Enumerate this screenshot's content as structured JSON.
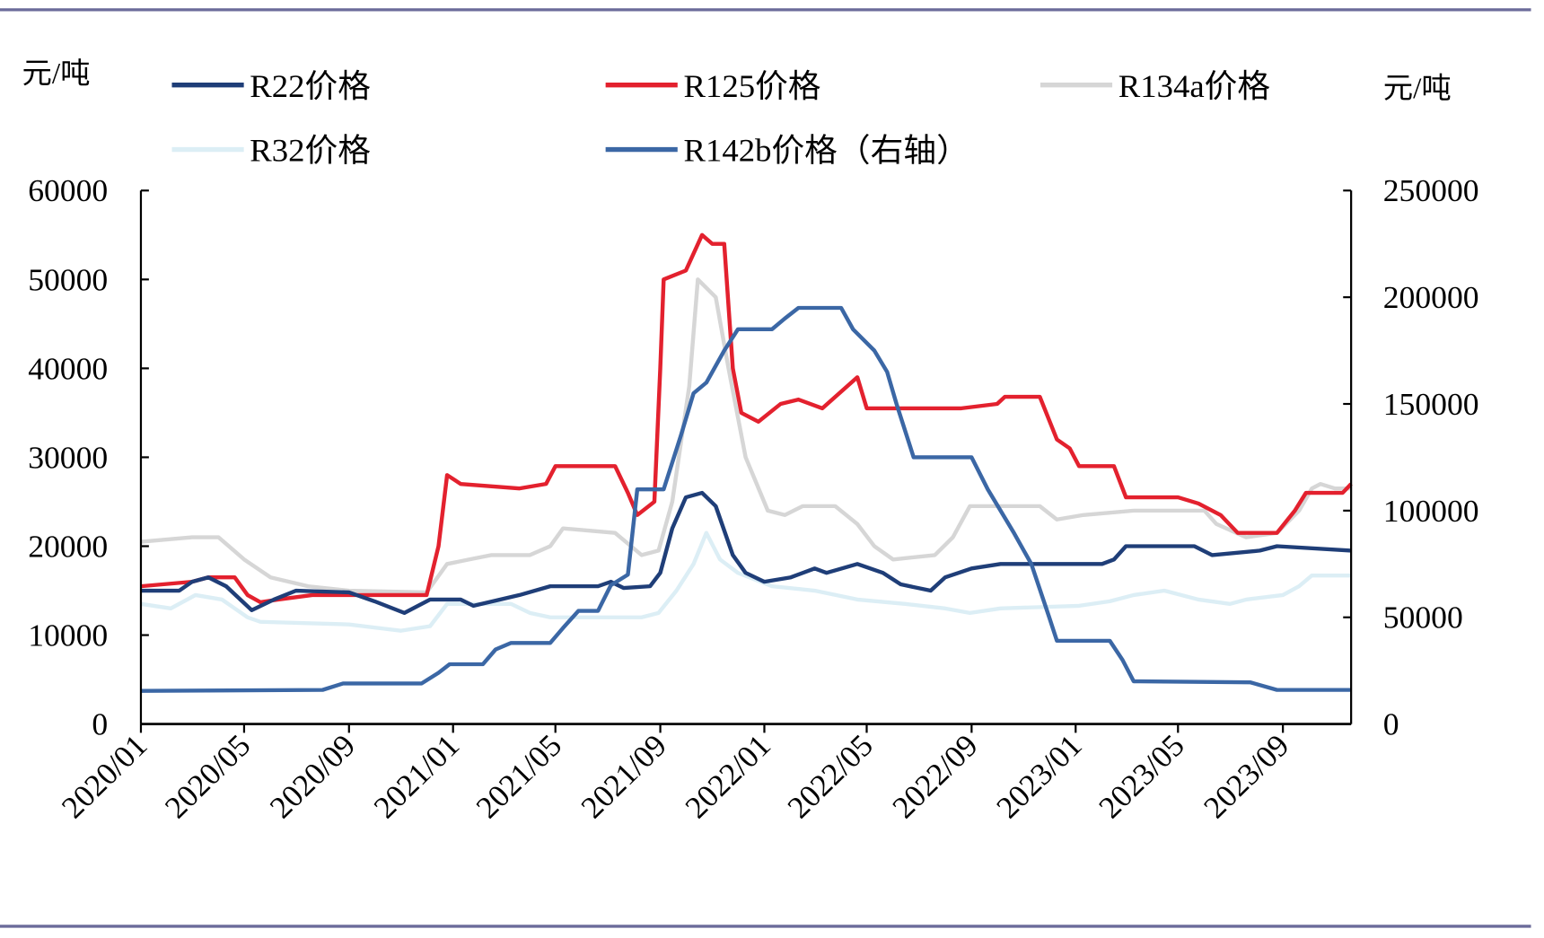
{
  "chart_data": {
    "type": "line",
    "left_unit": "元/吨",
    "right_unit": "元/吨",
    "y_left": {
      "range": [
        0,
        60000
      ],
      "ticks": [
        "0",
        "10000",
        "20000",
        "30000",
        "40000",
        "50000",
        "60000"
      ]
    },
    "y_right": {
      "range": [
        0,
        250000
      ],
      "ticks": [
        "0",
        "50000",
        "100000",
        "150000",
        "200000",
        "250000"
      ]
    },
    "x": {
      "range": [
        "2020-01-01",
        "2023-11-20"
      ],
      "ticks": [
        "2020/01",
        "2020/05",
        "2020/09",
        "2021/01",
        "2021/05",
        "2021/09",
        "2022/01",
        "2022/05",
        "2022/09",
        "2023/01",
        "2023/05",
        "2023/09"
      ]
    },
    "grid": false,
    "legend_position": "top",
    "series": [
      {
        "name": "R22价格",
        "axis": "left",
        "color": "#1F3E78",
        "points": [
          [
            "2020-01-01",
            15000
          ],
          [
            "2020-02-15",
            15000
          ],
          [
            "2020-03-01",
            16000
          ],
          [
            "2020-03-20",
            16500
          ],
          [
            "2020-04-10",
            15500
          ],
          [
            "2020-05-10",
            12800
          ],
          [
            "2020-06-05",
            14000
          ],
          [
            "2020-07-01",
            15000
          ],
          [
            "2020-09-01",
            14800
          ],
          [
            "2020-10-01",
            13800
          ],
          [
            "2020-11-05",
            12500
          ],
          [
            "2020-12-05",
            14000
          ],
          [
            "2021-01-10",
            14000
          ],
          [
            "2021-01-25",
            13300
          ],
          [
            "2021-03-20",
            14500
          ],
          [
            "2021-04-25",
            15500
          ],
          [
            "2021-06-20",
            15500
          ],
          [
            "2021-07-05",
            16000
          ],
          [
            "2021-07-20",
            15300
          ],
          [
            "2021-08-20",
            15500
          ],
          [
            "2021-09-01",
            17000
          ],
          [
            "2021-09-15",
            22000
          ],
          [
            "2021-10-01",
            25500
          ],
          [
            "2021-10-20",
            26000
          ],
          [
            "2021-11-05",
            24500
          ],
          [
            "2021-11-25",
            19000
          ],
          [
            "2021-12-10",
            17000
          ],
          [
            "2022-01-01",
            16000
          ],
          [
            "2022-02-01",
            16500
          ],
          [
            "2022-03-01",
            17500
          ],
          [
            "2022-03-15",
            17000
          ],
          [
            "2022-04-20",
            18000
          ],
          [
            "2022-05-20",
            17000
          ],
          [
            "2022-06-10",
            15700
          ],
          [
            "2022-07-15",
            15000
          ],
          [
            "2022-08-01",
            16500
          ],
          [
            "2022-09-01",
            17500
          ],
          [
            "2022-10-05",
            18000
          ],
          [
            "2022-12-20",
            18000
          ],
          [
            "2023-02-01",
            18000
          ],
          [
            "2023-02-15",
            18500
          ],
          [
            "2023-03-01",
            20000
          ],
          [
            "2023-05-20",
            20000
          ],
          [
            "2023-06-10",
            19000
          ],
          [
            "2023-08-05",
            19500
          ],
          [
            "2023-08-25",
            20000
          ],
          [
            "2023-11-20",
            19500
          ]
        ]
      },
      {
        "name": "R125价格",
        "axis": "left",
        "color": "#E3212E",
        "points": [
          [
            "2020-01-01",
            15500
          ],
          [
            "2020-03-01",
            16000
          ],
          [
            "2020-03-20",
            16500
          ],
          [
            "2020-04-20",
            16500
          ],
          [
            "2020-05-05",
            14500
          ],
          [
            "2020-05-20",
            13700
          ],
          [
            "2020-06-10",
            14000
          ],
          [
            "2020-07-20",
            14500
          ],
          [
            "2020-12-01",
            14500
          ],
          [
            "2020-12-15",
            20000
          ],
          [
            "2020-12-25",
            28000
          ],
          [
            "2021-01-10",
            27000
          ],
          [
            "2021-03-20",
            26500
          ],
          [
            "2021-04-20",
            27000
          ],
          [
            "2021-05-01",
            29000
          ],
          [
            "2021-07-10",
            29000
          ],
          [
            "2021-07-25",
            26000
          ],
          [
            "2021-08-05",
            23500
          ],
          [
            "2021-08-25",
            25000
          ],
          [
            "2021-09-01",
            40000
          ],
          [
            "2021-09-05",
            50000
          ],
          [
            "2021-10-01",
            51000
          ],
          [
            "2021-10-20",
            55000
          ],
          [
            "2021-11-01",
            54000
          ],
          [
            "2021-11-15",
            54000
          ],
          [
            "2021-11-25",
            40000
          ],
          [
            "2021-12-05",
            35000
          ],
          [
            "2021-12-25",
            34000
          ],
          [
            "2022-01-20",
            36000
          ],
          [
            "2022-02-10",
            36500
          ],
          [
            "2022-03-10",
            35500
          ],
          [
            "2022-04-20",
            39000
          ],
          [
            "2022-05-01",
            35500
          ],
          [
            "2022-08-20",
            35500
          ],
          [
            "2022-10-01",
            36000
          ],
          [
            "2022-10-10",
            36800
          ],
          [
            "2022-11-20",
            36800
          ],
          [
            "2022-12-10",
            32000
          ],
          [
            "2022-12-25",
            31000
          ],
          [
            "2023-01-05",
            29000
          ],
          [
            "2023-02-15",
            29000
          ],
          [
            "2023-03-01",
            25500
          ],
          [
            "2023-05-01",
            25500
          ],
          [
            "2023-05-25",
            24800
          ],
          [
            "2023-06-20",
            23500
          ],
          [
            "2023-07-10",
            21500
          ],
          [
            "2023-08-25",
            21500
          ],
          [
            "2023-09-15",
            24000
          ],
          [
            "2023-09-28",
            26000
          ],
          [
            "2023-11-10",
            26000
          ],
          [
            "2023-11-20",
            27000
          ]
        ]
      },
      {
        "name": "R134a价格",
        "axis": "left",
        "color": "#D6D6D6",
        "points": [
          [
            "2020-01-01",
            20500
          ],
          [
            "2020-03-01",
            21000
          ],
          [
            "2020-04-01",
            21000
          ],
          [
            "2020-05-01",
            18500
          ],
          [
            "2020-06-01",
            16500
          ],
          [
            "2020-07-15",
            15500
          ],
          [
            "2020-09-01",
            15000
          ],
          [
            "2020-12-01",
            14800
          ],
          [
            "2020-12-25",
            18000
          ],
          [
            "2021-01-20",
            18500
          ],
          [
            "2021-02-15",
            19000
          ],
          [
            "2021-04-01",
            19000
          ],
          [
            "2021-04-25",
            20000
          ],
          [
            "2021-05-10",
            22000
          ],
          [
            "2021-07-10",
            21500
          ],
          [
            "2021-08-10",
            19000
          ],
          [
            "2021-08-30",
            19500
          ],
          [
            "2021-09-15",
            25000
          ],
          [
            "2021-10-05",
            38000
          ],
          [
            "2021-10-15",
            50000
          ],
          [
            "2021-11-05",
            48000
          ],
          [
            "2021-11-20",
            40000
          ],
          [
            "2021-12-10",
            30000
          ],
          [
            "2022-01-05",
            24000
          ],
          [
            "2022-01-25",
            23500
          ],
          [
            "2022-02-15",
            24500
          ],
          [
            "2022-03-25",
            24500
          ],
          [
            "2022-04-20",
            22500
          ],
          [
            "2022-05-10",
            20000
          ],
          [
            "2022-06-01",
            18500
          ],
          [
            "2022-07-20",
            19000
          ],
          [
            "2022-08-10",
            21000
          ],
          [
            "2022-08-30",
            24500
          ],
          [
            "2022-11-20",
            24500
          ],
          [
            "2022-12-10",
            23000
          ],
          [
            "2023-01-10",
            23500
          ],
          [
            "2023-03-10",
            24000
          ],
          [
            "2023-06-01",
            24000
          ],
          [
            "2023-06-15",
            22500
          ],
          [
            "2023-07-20",
            21000
          ],
          [
            "2023-08-25",
            21500
          ],
          [
            "2023-09-20",
            24000
          ],
          [
            "2023-10-05",
            26500
          ],
          [
            "2023-10-15",
            27000
          ],
          [
            "2023-11-01",
            26500
          ],
          [
            "2023-11-20",
            26500
          ]
        ]
      },
      {
        "name": "R32价格",
        "axis": "left",
        "color": "#DCEEF5",
        "points": [
          [
            "2020-01-01",
            13500
          ],
          [
            "2020-02-05",
            13000
          ],
          [
            "2020-03-05",
            14500
          ],
          [
            "2020-04-05",
            14000
          ],
          [
            "2020-05-05",
            12000
          ],
          [
            "2020-05-20",
            11500
          ],
          [
            "2020-09-01",
            11200
          ],
          [
            "2020-10-05",
            10800
          ],
          [
            "2020-11-01",
            10500
          ],
          [
            "2020-12-05",
            11000
          ],
          [
            "2020-12-25",
            13500
          ],
          [
            "2021-03-10",
            13500
          ],
          [
            "2021-04-01",
            12500
          ],
          [
            "2021-04-25",
            12000
          ],
          [
            "2021-08-10",
            12000
          ],
          [
            "2021-08-30",
            12500
          ],
          [
            "2021-09-20",
            15000
          ],
          [
            "2021-10-10",
            18000
          ],
          [
            "2021-10-25",
            21500
          ],
          [
            "2021-11-10",
            18500
          ],
          [
            "2021-12-01",
            17000
          ],
          [
            "2022-01-10",
            15500
          ],
          [
            "2022-03-01",
            15000
          ],
          [
            "2022-04-20",
            14000
          ],
          [
            "2022-06-15",
            13500
          ],
          [
            "2022-08-01",
            13000
          ],
          [
            "2022-08-30",
            12500
          ],
          [
            "2022-10-05",
            13000
          ],
          [
            "2023-01-05",
            13300
          ],
          [
            "2023-02-10",
            13800
          ],
          [
            "2023-03-10",
            14500
          ],
          [
            "2023-04-15",
            15000
          ],
          [
            "2023-05-25",
            14000
          ],
          [
            "2023-07-01",
            13500
          ],
          [
            "2023-07-20",
            14000
          ],
          [
            "2023-09-01",
            14500
          ],
          [
            "2023-09-20",
            15500
          ],
          [
            "2023-10-05",
            16700
          ],
          [
            "2023-11-20",
            16700
          ]
        ]
      },
      {
        "name": "R142b价格（右轴）",
        "axis": "right",
        "color": "#3B67A5",
        "points": [
          [
            "2020-01-01",
            15500
          ],
          [
            "2020-08-01",
            16000
          ],
          [
            "2020-08-25",
            19000
          ],
          [
            "2020-11-25",
            19000
          ],
          [
            "2020-12-15",
            24000
          ],
          [
            "2020-12-28",
            28000
          ],
          [
            "2021-02-05",
            28000
          ],
          [
            "2021-02-20",
            35000
          ],
          [
            "2021-03-10",
            38000
          ],
          [
            "2021-04-25",
            38000
          ],
          [
            "2021-05-10",
            45000
          ],
          [
            "2021-05-28",
            53000
          ],
          [
            "2021-06-20",
            53000
          ],
          [
            "2021-07-05",
            65000
          ],
          [
            "2021-07-25",
            70000
          ],
          [
            "2021-08-05",
            110000
          ],
          [
            "2021-09-05",
            110000
          ],
          [
            "2021-09-25",
            135000
          ],
          [
            "2021-10-10",
            155000
          ],
          [
            "2021-10-25",
            160000
          ],
          [
            "2021-11-15",
            175000
          ],
          [
            "2021-12-01",
            185000
          ],
          [
            "2022-01-10",
            185000
          ],
          [
            "2022-01-25",
            190000
          ],
          [
            "2022-02-10",
            195000
          ],
          [
            "2022-04-01",
            195000
          ],
          [
            "2022-04-15",
            185000
          ],
          [
            "2022-05-10",
            175000
          ],
          [
            "2022-05-25",
            165000
          ],
          [
            "2022-06-05",
            150000
          ],
          [
            "2022-06-25",
            125000
          ],
          [
            "2022-09-01",
            125000
          ],
          [
            "2022-09-20",
            110000
          ],
          [
            "2022-10-20",
            90000
          ],
          [
            "2022-11-10",
            75000
          ],
          [
            "2022-12-01",
            50000
          ],
          [
            "2022-12-10",
            39000
          ],
          [
            "2023-02-10",
            39000
          ],
          [
            "2023-02-25",
            30000
          ],
          [
            "2023-03-10",
            20000
          ],
          [
            "2023-07-25",
            19500
          ],
          [
            "2023-08-25",
            16000
          ],
          [
            "2023-11-20",
            16000
          ]
        ]
      }
    ]
  }
}
